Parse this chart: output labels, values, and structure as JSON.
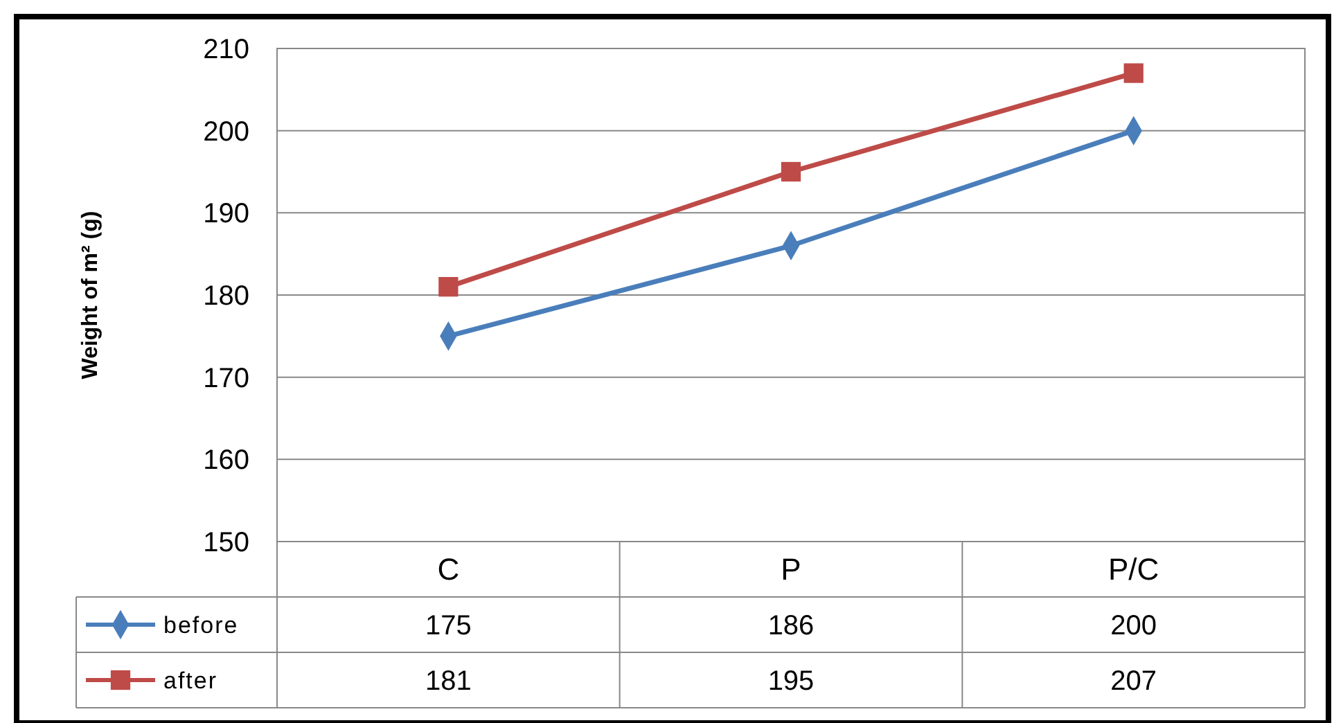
{
  "chart_data": {
    "type": "line",
    "ylabel": "Weight of m² (g)",
    "categories": [
      "C",
      "P",
      "P/C"
    ],
    "series": [
      {
        "name": "before",
        "color": "#4a7ebb",
        "marker": "diamond",
        "values": [
          175,
          186,
          200
        ]
      },
      {
        "name": "after",
        "color": "#be4b48",
        "marker": "square",
        "values": [
          181,
          195,
          207
        ]
      }
    ],
    "ylim": [
      150,
      210
    ],
    "yticks": [
      150,
      160,
      170,
      180,
      190,
      200,
      210
    ],
    "grid": "y",
    "legend": "bottom left",
    "data_labels": true
  }
}
